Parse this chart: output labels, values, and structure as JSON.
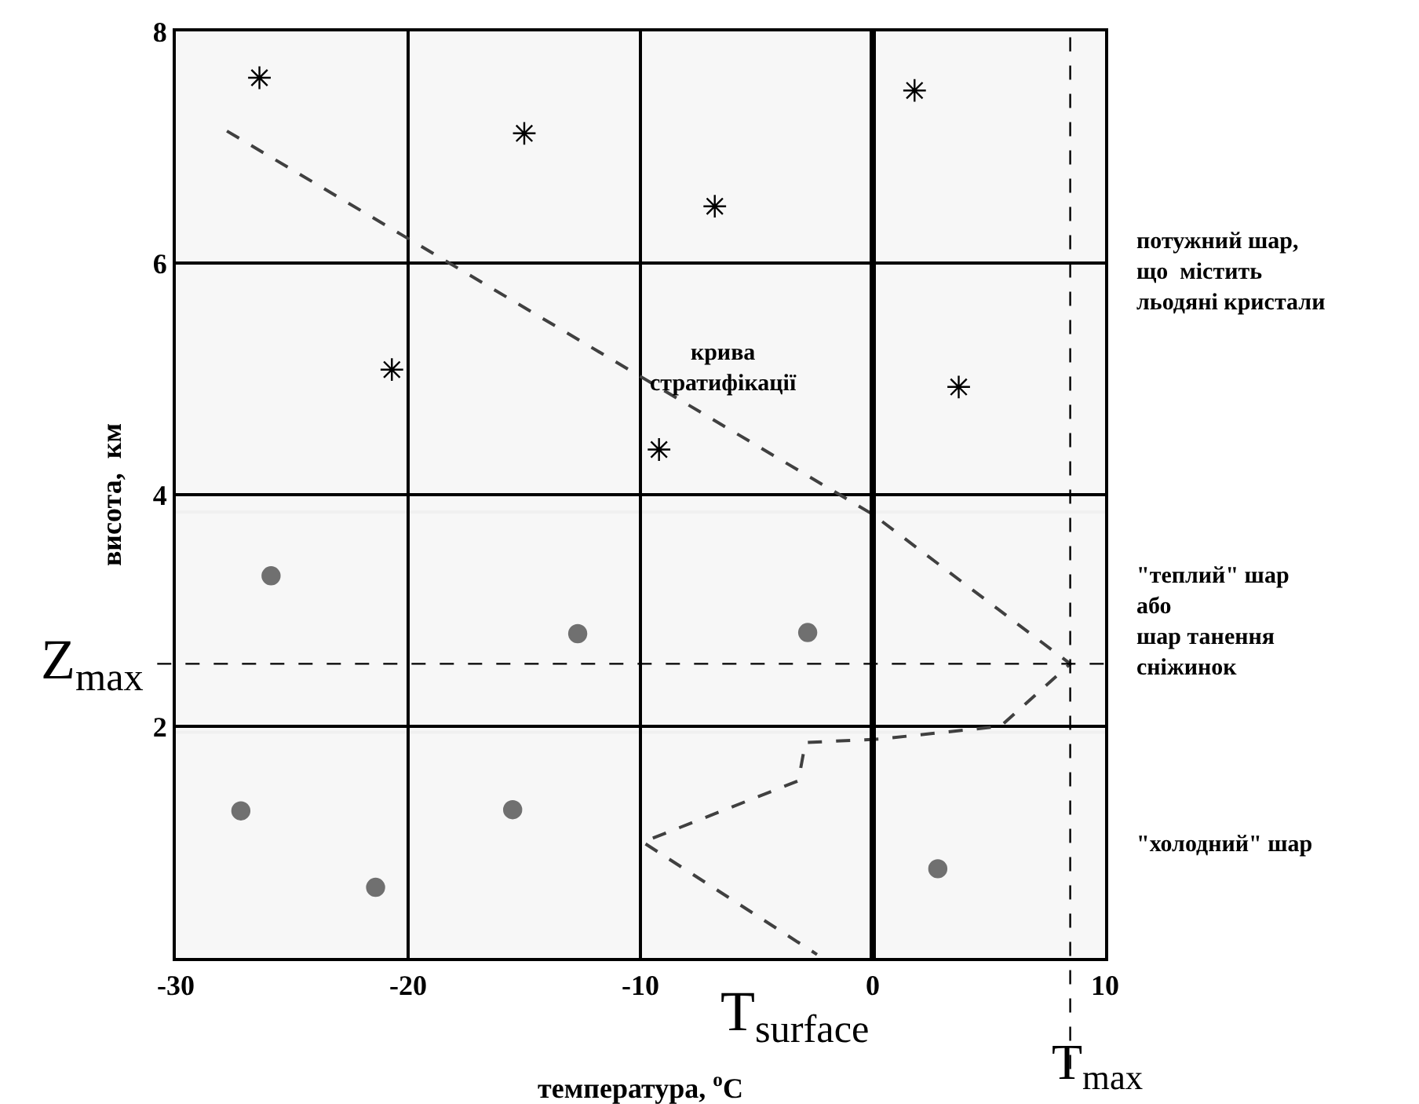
{
  "chart_data": {
    "type": "scatter",
    "xlabel": "температура, $^{o}$C",
    "ylabel": "висота,  км",
    "xlim": [
      -30,
      10
    ],
    "xticks": [
      -30,
      -20,
      -10,
      0,
      10
    ],
    "ylim": [
      0,
      8
    ],
    "yticks": [
      {
        "value": 0,
        "label": null
      },
      2,
      4,
      6,
      8
    ],
    "grid": true,
    "series": [
      {
        "type": "line",
        "line_style": "dashed",
        "marker": "none",
        "color": "#404040",
        "x": [
          -27.8,
          0,
          8.5,
          5.5,
          0.3,
          -2.9,
          -3.2,
          -9.9,
          -2.4
        ],
        "values": [
          7.14,
          3.83,
          2.54,
          2.0,
          1.89,
          1.86,
          1.53,
          1.0,
          0.03
        ]
      },
      {
        "type": "scatter",
        "marker": "cross",
        "color": "#000000",
        "x": [
          -26.4,
          -15.0,
          -6.8,
          1.8,
          -20.7,
          -9.2,
          3.7
        ],
        "values": [
          7.6,
          7.12,
          6.49,
          7.49,
          5.08,
          4.39,
          4.93
        ]
      },
      {
        "type": "scatter",
        "marker": "circle",
        "color": "#707070",
        "x": [
          -25.9,
          -12.7,
          -2.8,
          -27.2,
          -21.4,
          -15.5,
          2.8
        ],
        "values": [
          3.3,
          2.8,
          2.81,
          1.27,
          0.61,
          1.28,
          0.77
        ]
      }
    ],
    "ref_lines": [
      {
        "axis": "x",
        "value": 0,
        "label": "T$_{surface}$",
        "color": "#000000",
        "line_style": "solid"
      },
      {
        "axis": "y",
        "value": 2.54,
        "label": "Z$_{max}$",
        "color": "#000000",
        "line_style": "dashed"
      },
      {
        "axis": "x",
        "value": 8.5,
        "label": "T$_{max}$",
        "color": "#000000",
        "line_style": "dashed"
      }
    ],
    "bands": [
      {
        "axis": "y",
        "from": 3.85,
        "to": 8,
        "label": "потужний шар,\nщо  містить\nльодяні кристали",
        "color": "#a0a0a0"
      },
      {
        "axis": "y",
        "from": 1.95,
        "to": 3.85,
        "label": "\"теплий\" шар\nабо\nшар танення\nсніжинок",
        "color": "#a0a0a0"
      },
      {
        "axis": "y",
        "from": 0,
        "to": 1.95,
        "label": "\"холодний\" шар",
        "color": "#a0a0a0"
      }
    ],
    "annotations": [
      "крива\nстратифікації"
    ]
  }
}
